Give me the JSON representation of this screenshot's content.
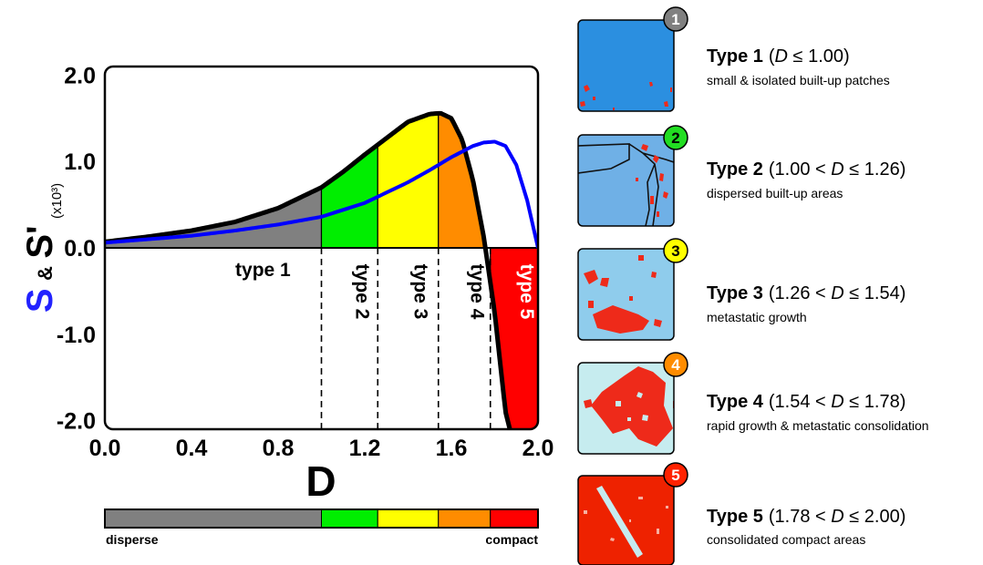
{
  "chart_data": {
    "type": "area",
    "xlabel": "D",
    "ylabel_s": "S",
    "ylabel_amp": "&",
    "ylabel_sprime": "S'",
    "ylabel_unit": "(x10³)",
    "xlim": [
      0.0,
      2.0
    ],
    "ylim": [
      -2.1,
      2.1
    ],
    "x_ticks": [
      {
        "v": 0.0,
        "label": "0.0"
      },
      {
        "v": 0.4,
        "label": "0.4"
      },
      {
        "v": 0.8,
        "label": "0.8"
      },
      {
        "v": 1.2,
        "label": "1.2"
      },
      {
        "v": 1.6,
        "label": "1.6"
      },
      {
        "v": 2.0,
        "label": "2.0"
      }
    ],
    "y_ticks": [
      {
        "v": 2.0,
        "label": "2.0"
      },
      {
        "v": 1.0,
        "label": "1.0"
      },
      {
        "v": 0.0,
        "label": "0.0"
      },
      {
        "v": -1.0,
        "label": "-1.0"
      },
      {
        "v": -2.0,
        "label": "-2.0"
      }
    ],
    "series": [
      {
        "key": "S",
        "color": "#0000ff",
        "x": [
          0.0,
          0.2,
          0.4,
          0.6,
          0.8,
          1.0,
          1.2,
          1.4,
          1.5,
          1.6,
          1.7,
          1.75,
          1.8,
          1.85,
          1.9,
          1.95,
          2.0
        ],
        "y": [
          0.06,
          0.1,
          0.14,
          0.2,
          0.27,
          0.36,
          0.52,
          0.76,
          0.9,
          1.05,
          1.18,
          1.22,
          1.23,
          1.18,
          0.96,
          0.55,
          0.0
        ]
      },
      {
        "key": "S'",
        "color": "#000000",
        "x": [
          0.0,
          0.2,
          0.4,
          0.6,
          0.8,
          1.0,
          1.1,
          1.2,
          1.3,
          1.4,
          1.5,
          1.55,
          1.6,
          1.65,
          1.7,
          1.75,
          1.8,
          1.85,
          1.87
        ],
        "y": [
          0.07,
          0.13,
          0.2,
          0.3,
          0.46,
          0.7,
          0.88,
          1.08,
          1.27,
          1.46,
          1.55,
          1.56,
          1.5,
          1.25,
          0.78,
          0.12,
          -0.75,
          -1.9,
          -2.1
        ]
      }
    ],
    "bands": [
      {
        "label": "type 1",
        "from": 0.0,
        "to": 1.0,
        "color": "#808080",
        "rotated": false
      },
      {
        "label": "type 2",
        "from": 1.0,
        "to": 1.26,
        "color": "#00ee00",
        "rotated": true
      },
      {
        "label": "type 3",
        "from": 1.26,
        "to": 1.54,
        "color": "#ffff00",
        "rotated": true
      },
      {
        "label": "type 4",
        "from": 1.54,
        "to": 1.78,
        "color": "#ff8c00",
        "rotated": true
      },
      {
        "label": "type 5",
        "from": 1.78,
        "to": 2.0,
        "color": "#ff0000",
        "rotated": true
      }
    ]
  },
  "legend_bar": {
    "left_label": "disperse",
    "right_label": "compact"
  },
  "types": [
    {
      "num": "1",
      "name": "Type 1",
      "range_prefix": "(",
      "range_var": "D",
      "range_suffix": " ≤ 1.00)",
      "desc": "small & isolated built-up patches",
      "badge_color": "#808080",
      "badge_text_color": "#ffffff",
      "bg": "#2b8fe0"
    },
    {
      "num": "2",
      "name": "Type 2",
      "range_prefix": "(1.00 < ",
      "range_var": "D",
      "range_suffix": " ≤ 1.26)",
      "desc": "dispersed built-up areas",
      "badge_color": "#22dd22",
      "badge_text_color": "#000000",
      "bg": "#6fb0e6"
    },
    {
      "num": "3",
      "name": "Type 3",
      "range_prefix": "(1.26 < ",
      "range_var": "D",
      "range_suffix": " ≤ 1.54)",
      "desc": "metastatic growth",
      "badge_color": "#ffff00",
      "badge_text_color": "#000000",
      "bg": "#8fccec"
    },
    {
      "num": "4",
      "name": "Type 4",
      "range_prefix": "(1.54 < ",
      "range_var": "D",
      "range_suffix": " ≤ 1.78)",
      "desc": "rapid growth & metastatic consolidation",
      "badge_color": "#ff8c00",
      "badge_text_color": "#ffffff",
      "bg": "#c6ecef"
    },
    {
      "num": "5",
      "name": "Type 5",
      "range_prefix": "(1.78 < ",
      "range_var": "D",
      "range_suffix": " ≤ 2.00)",
      "desc": "consolidated compact areas",
      "badge_color": "#ff2200",
      "badge_text_color": "#ffffff",
      "bg": "#ee2200"
    }
  ]
}
